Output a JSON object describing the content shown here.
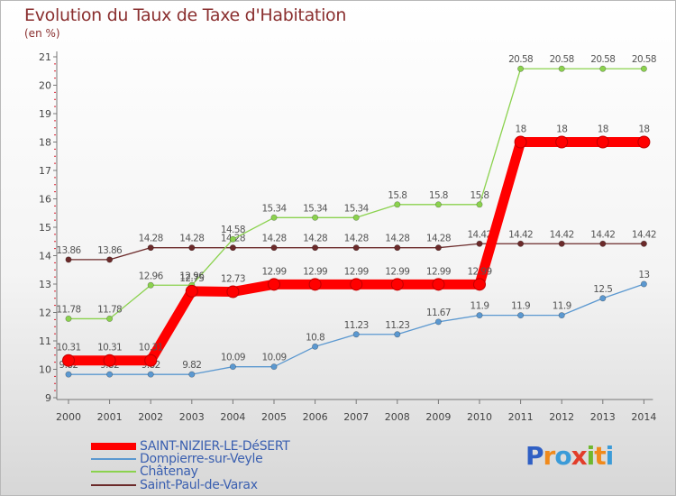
{
  "header": {
    "title": "Evolution du Taux de Taxe d'Habitation",
    "unit": "(en %)"
  },
  "logo": {
    "text": "Proxiti",
    "letters": [
      "P",
      "r",
      "o",
      "x",
      "i",
      "t",
      "i"
    ],
    "colors": [
      "#2f5fc4",
      "#f08a1c",
      "#3b9bd8",
      "#e23d2a",
      "#6fb82e",
      "#f08a1c",
      "#3b9bd8"
    ]
  },
  "chart_data": {
    "type": "line",
    "title": "Evolution du Taux de Taxe d'Habitation",
    "subtitle": "(en %)",
    "xlabel": "",
    "ylabel": "",
    "x": [
      "2000",
      "2001",
      "2002",
      "2003",
      "2004",
      "2005",
      "2006",
      "2007",
      "2008",
      "2009",
      "2010",
      "2011",
      "2012",
      "2013",
      "2014"
    ],
    "ylim": [
      9,
      21
    ],
    "yticks": [
      9,
      10,
      11,
      12,
      13,
      14,
      15,
      16,
      17,
      18,
      19,
      20,
      21
    ],
    "grid": false,
    "legend_position": "bottom-left",
    "series": [
      {
        "name": "Saint-Paul-de-Varax",
        "color": "#6b2a2a",
        "values": [
          13.86,
          13.86,
          14.28,
          14.28,
          14.28,
          14.28,
          14.28,
          14.28,
          14.28,
          14.28,
          14.42,
          14.42,
          14.42,
          14.42,
          14.42
        ],
        "labels": [
          "13.86",
          "13.86",
          "14.28",
          "14.28",
          "14.28",
          "14.28",
          "14.28",
          "14.28",
          "14.28",
          "14.28",
          "14.42",
          "14.42",
          "14.42",
          "14.42",
          "14.42"
        ]
      },
      {
        "name": "Châtenay",
        "color": "#8bd24e",
        "values": [
          11.78,
          11.78,
          12.96,
          12.96,
          14.58,
          15.34,
          15.34,
          15.34,
          15.8,
          15.8,
          15.8,
          20.58,
          20.58,
          20.58,
          20.58
        ],
        "labels": [
          "11.78",
          "11.78",
          "12.96",
          "12.96",
          "14.58",
          "15.34",
          "15.34",
          "15.34",
          "15.8",
          "15.8",
          "15.8",
          "20.58",
          "20.58",
          "20.58",
          "20.58"
        ]
      },
      {
        "name": "Dompierre-sur-Veyle",
        "color": "#5b98d0",
        "values": [
          9.82,
          9.82,
          9.82,
          9.82,
          10.09,
          10.09,
          10.8,
          11.23,
          11.23,
          11.67,
          11.9,
          11.9,
          11.9,
          12.5,
          13
        ],
        "labels": [
          "9.82",
          "9.82",
          "9.82",
          "9.82",
          "10.09",
          "10.09",
          "10.8",
          "11.23",
          "11.23",
          "11.67",
          "11.9",
          "11.9",
          "11.9",
          "12.5",
          "13"
        ]
      },
      {
        "name": "SAINT-NIZIER-LE-DéSERT",
        "color": "#ff0000",
        "values": [
          10.31,
          10.31,
          10.31,
          12.75,
          12.73,
          12.99,
          12.99,
          12.99,
          12.99,
          12.99,
          12.99,
          18,
          18,
          18,
          18
        ],
        "labels": [
          "10.31",
          "10.31",
          "10.31",
          "12.75",
          "12.73",
          "12.99",
          "12.99",
          "12.99",
          "12.99",
          "12.99",
          "12.99",
          "18",
          "18",
          "18",
          "18"
        ],
        "emphasis": true
      }
    ],
    "legend": [
      "SAINT-NIZIER-LE-DéSERT",
      "Dompierre-sur-Veyle",
      "Châtenay",
      "Saint-Paul-de-Varax"
    ]
  }
}
